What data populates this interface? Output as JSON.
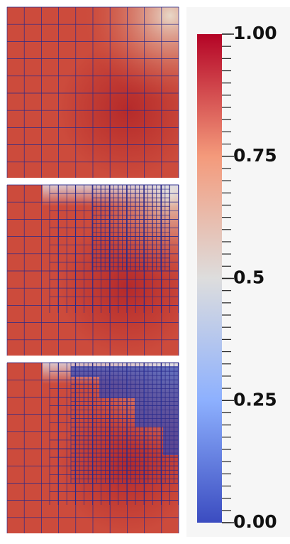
{
  "colorbar": {
    "range": [
      0,
      1
    ],
    "ticks": [
      {
        "value": 1,
        "label": "1.00"
      },
      0.75,
      0.5,
      0.25,
      {
        "value": 0,
        "label": "0.00"
      }
    ]
  }
}
